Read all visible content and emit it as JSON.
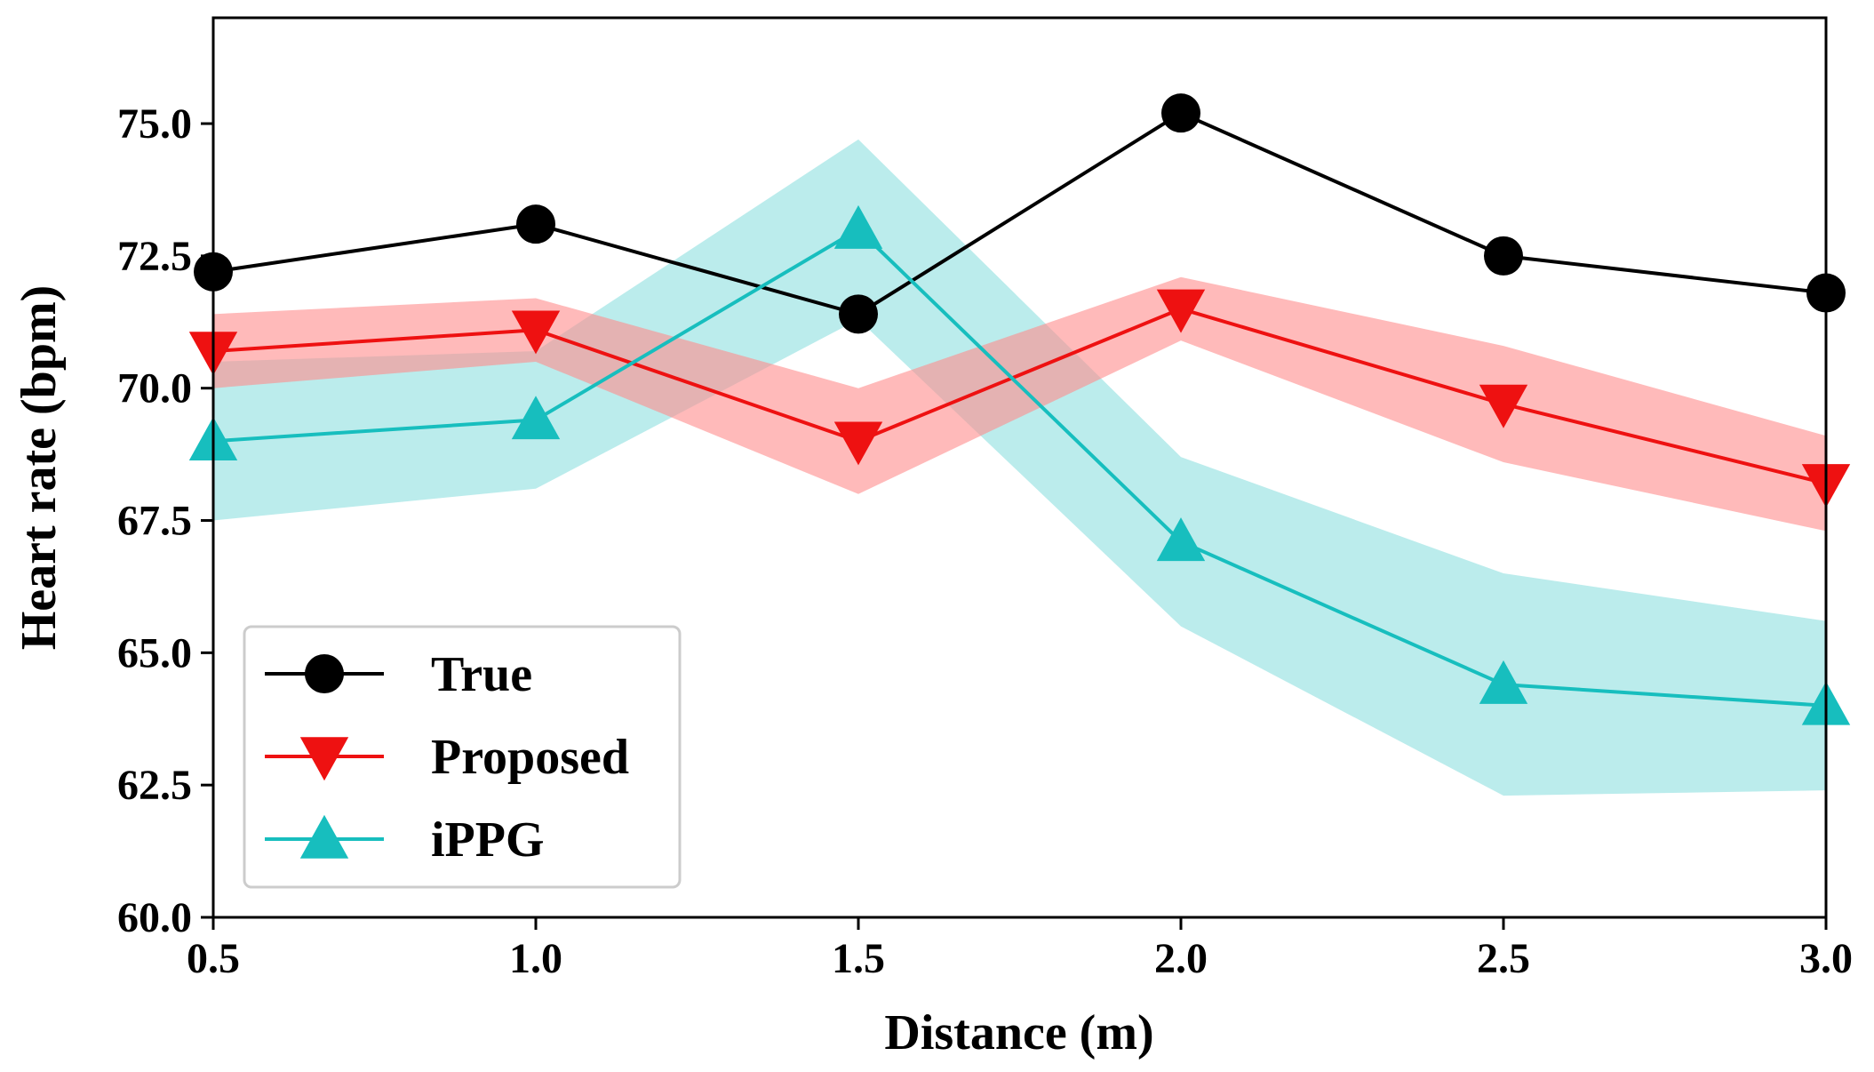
{
  "chart_data": {
    "type": "line",
    "title": "",
    "xlabel": "Distance (m)",
    "ylabel": "Heart rate (bpm)",
    "x": [
      0.5,
      1.0,
      1.5,
      2.0,
      2.5,
      3.0
    ],
    "x_tick_labels": [
      "0.5",
      "1.0",
      "1.5",
      "2.0",
      "2.5",
      "3.0"
    ],
    "y_ticks": [
      60.0,
      62.5,
      65.0,
      67.5,
      70.0,
      72.5,
      75.0
    ],
    "y_tick_labels": [
      "60.0",
      "62.5",
      "65.0",
      "67.5",
      "70.0",
      "72.5",
      "75.0"
    ],
    "xlim": [
      0.5,
      3.0
    ],
    "ylim": [
      60.0,
      77.0
    ],
    "grid": false,
    "legend_position": "lower-left",
    "series": [
      {
        "name": "True",
        "color": "#000000",
        "marker": "circle",
        "values": [
          72.2,
          73.1,
          71.4,
          75.2,
          72.5,
          71.8
        ]
      },
      {
        "name": "Proposed",
        "color": "#ee1111",
        "band_color": "#ff8c8c",
        "marker": "triangle-down",
        "values": [
          70.7,
          71.1,
          69.0,
          71.5,
          69.7,
          68.2
        ],
        "band_lower": [
          70.0,
          70.5,
          68.0,
          70.9,
          68.6,
          67.3
        ],
        "band_upper": [
          71.4,
          71.7,
          70.0,
          72.1,
          70.8,
          69.1
        ]
      },
      {
        "name": "iPPG",
        "color": "#17bebe",
        "band_color": "#8ee0e0",
        "marker": "triangle-up",
        "values": [
          69.0,
          69.4,
          73.0,
          67.1,
          64.4,
          64.0
        ],
        "band_lower": [
          67.5,
          68.1,
          71.3,
          65.5,
          62.3,
          62.4
        ],
        "band_upper": [
          70.5,
          70.7,
          74.7,
          68.7,
          66.5,
          65.6
        ]
      }
    ]
  }
}
